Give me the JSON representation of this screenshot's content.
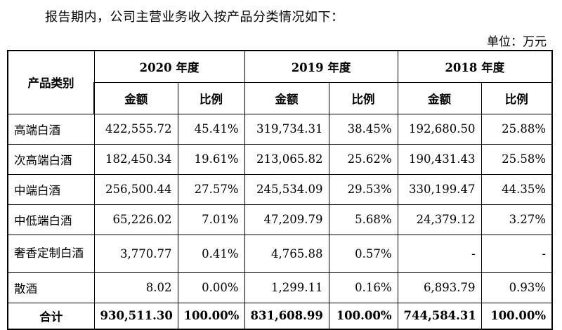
{
  "intro": "报告期内，公司主营业务收入按产品分类情况如下：",
  "unit": "单位：万元",
  "table": {
    "category_header": "产品类别",
    "years": [
      "2020 年度",
      "2019 年度",
      "2018 年度"
    ],
    "sub_headers": {
      "amount": "金额",
      "ratio": "比例"
    },
    "rows": [
      {
        "category": "高端白酒",
        "cells": [
          "422,555.72",
          "45.41%",
          "319,734.31",
          "38.45%",
          "192,680.50",
          "25.88%"
        ]
      },
      {
        "category": "次高端白酒",
        "cells": [
          "182,450.34",
          "19.61%",
          "213,065.82",
          "25.62%",
          "190,431.43",
          "25.58%"
        ]
      },
      {
        "category": "中端白酒",
        "cells": [
          "256,500.44",
          "27.57%",
          "245,534.09",
          "29.53%",
          "330,199.47",
          "44.35%"
        ]
      },
      {
        "category": "中低端白酒",
        "cells": [
          "65,226.02",
          "7.01%",
          "47,209.79",
          "5.68%",
          "24,379.12",
          "3.27%"
        ]
      },
      {
        "category": "奢香定制白酒",
        "cells": [
          "3,770.77",
          "0.41%",
          "4,765.88",
          "0.57%",
          "-",
          "-"
        ]
      },
      {
        "category": "散酒",
        "cells": [
          "8.02",
          "0.00%",
          "1,299.11",
          "0.16%",
          "6,893.79",
          "0.93%"
        ]
      }
    ],
    "total": {
      "category": "合计",
      "cells": [
        "930,511.30",
        "100.00%",
        "831,608.99",
        "100.00%",
        "744,584.31",
        "100.00%"
      ]
    }
  }
}
